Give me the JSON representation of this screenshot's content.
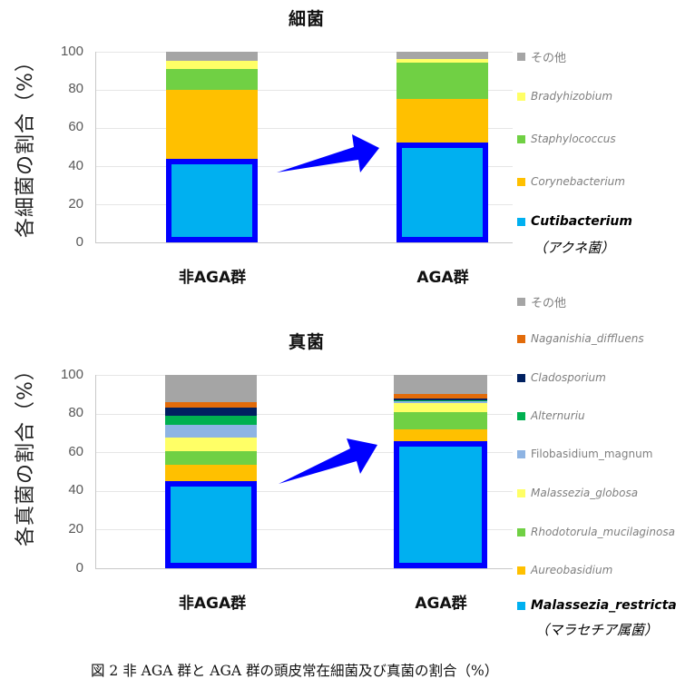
{
  "caption": "図 2  非 AGA 群と AGA 群の頭皮常在細菌及び真菌の割合（%）",
  "highlight_color": "#0000ff",
  "arrow_color": "#0000ff",
  "chart_data": [
    {
      "type": "bar",
      "stacked": true,
      "title": "細菌",
      "xlabel": "",
      "ylabel": "各細菌の割合（%）",
      "ylim": [
        0,
        100
      ],
      "yticks": [
        0,
        20,
        40,
        60,
        80,
        100
      ],
      "grid": true,
      "legend_position": "right",
      "categories": [
        "非AGA群",
        "AGA群"
      ],
      "series": [
        {
          "name": "Cutibacterium",
          "name_sub": "（アクネ菌）",
          "color": "#00b0f0",
          "highlight": true,
          "values": [
            43.8,
            52.4
          ]
        },
        {
          "name": "Corynebacterium",
          "color": "#ffc000",
          "values": [
            36.2,
            23.0
          ]
        },
        {
          "name": "Staphylococcus",
          "color": "#70d044",
          "values": [
            11.0,
            18.9
          ]
        },
        {
          "name": "Bradyhizobium",
          "color": "#ffff66",
          "values": [
            4.2,
            1.7
          ]
        },
        {
          "name": "その他",
          "color": "#a5a5a5",
          "values": [
            4.8,
            4.0
          ]
        }
      ],
      "annotations": [
        "Arrow from 非AGA群 Cutibacterium to AGA群 Cutibacterium indicating increase"
      ]
    },
    {
      "type": "bar",
      "stacked": true,
      "title": "真菌",
      "xlabel": "",
      "ylabel": "各真菌の割合（%）",
      "ylim": [
        0,
        100
      ],
      "yticks": [
        0,
        20,
        40,
        60,
        80,
        100
      ],
      "grid": true,
      "legend_position": "right",
      "categories": [
        "非AGA群",
        "AGA群"
      ],
      "series": [
        {
          "name": "Malassezia_restricta",
          "name_sub": "（マラセチア属菌）",
          "color": "#00b0f0",
          "highlight": true,
          "values": [
            45.0,
            65.9
          ]
        },
        {
          "name": "Aureobasidium",
          "color": "#ffc000",
          "values": [
            8.4,
            5.8
          ]
        },
        {
          "name": "Rhodotorula_mucilaginosa",
          "color": "#70d044",
          "values": [
            7.3,
            8.9
          ]
        },
        {
          "name": "Malassezia_globosa",
          "color": "#ffff66",
          "values": [
            6.8,
            5.0
          ]
        },
        {
          "name": "Filobasidium_magnum",
          "color": "#8eb4e3",
          "values": [
            6.8,
            0.9
          ]
        },
        {
          "name": "Alternuriu",
          "color": "#00b050",
          "values": [
            4.7,
            0.3
          ]
        },
        {
          "name": "Cladosporium",
          "color": "#002060",
          "values": [
            4.0,
            1.2
          ]
        },
        {
          "name": "Naganishia_diffluens",
          "color": "#e26b0a",
          "values": [
            2.8,
            2.1
          ]
        },
        {
          "name": "その他",
          "color": "#a5a5a5",
          "values": [
            14.2,
            9.9
          ]
        }
      ],
      "annotations": [
        "Arrow from 非AGA群 Malassezia_restricta to AGA群 Malassezia_restricta indicating increase"
      ]
    }
  ]
}
